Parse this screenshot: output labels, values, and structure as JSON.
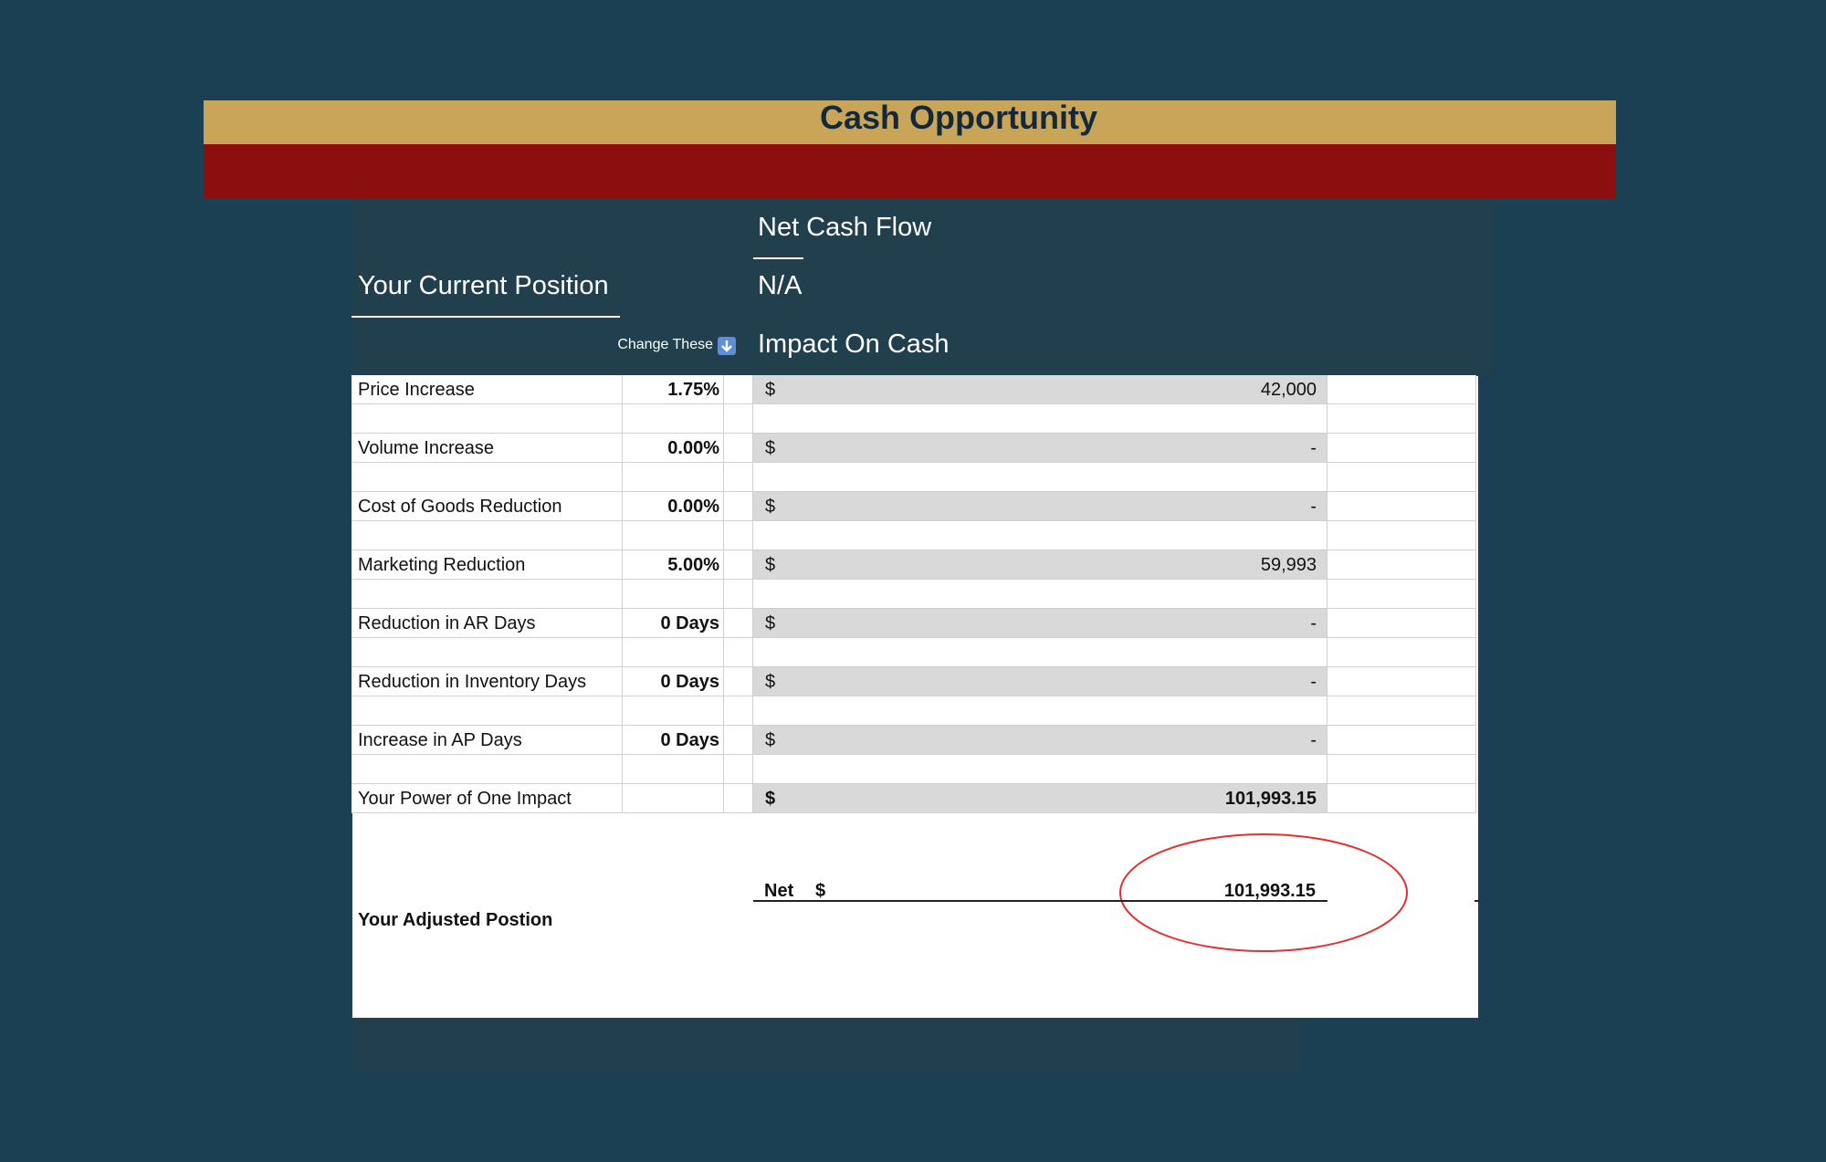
{
  "title": "Cash Opportunity",
  "header": {
    "net_cash_flow": "Net Cash Flow",
    "current_position": "Your Current Position",
    "current_value": "N/A",
    "change_these": "Change These",
    "impact_on_cash": "Impact On Cash"
  },
  "rows": [
    {
      "label": "Price Increase",
      "input": "1.75%",
      "currency": "$",
      "impact": "42,000"
    },
    {
      "label": "Volume Increase",
      "input": "0.00%",
      "currency": "$",
      "impact": "-"
    },
    {
      "label": "Cost of Goods Reduction",
      "input": "0.00%",
      "currency": "$",
      "impact": "-"
    },
    {
      "label": "Marketing Reduction",
      "input": "5.00%",
      "currency": "$",
      "impact": "59,993"
    },
    {
      "label": "Reduction in AR Days",
      "input": "0 Days",
      "currency": "$",
      "impact": "-"
    },
    {
      "label": "Reduction in Inventory Days",
      "input": "0 Days",
      "currency": "$",
      "impact": "-"
    },
    {
      "label": "Increase in AP Days",
      "input": "0 Days",
      "currency": "$",
      "impact": "-"
    }
  ],
  "total": {
    "label": "Your Power of One Impact",
    "currency": "$",
    "impact": "101,993.15"
  },
  "adjusted": {
    "label": "Your Adjusted Postion",
    "net_label": "Net",
    "currency": "$",
    "value": "101,993.15"
  }
}
